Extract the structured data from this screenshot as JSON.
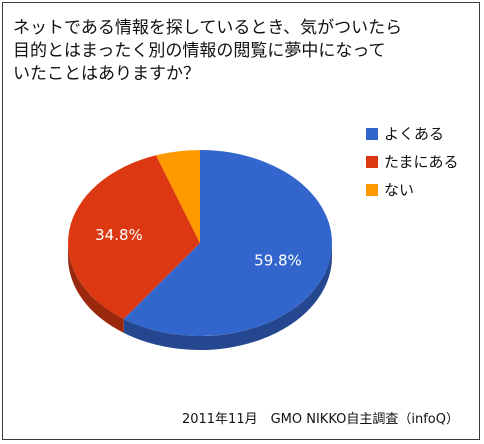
{
  "chart_data": {
    "type": "pie",
    "title_lines": [
      "ネットである情報を探しているとき、気がついたら",
      "目的とはまったく別の情報の閲覧に夢中になって",
      "いたことはありますか？"
    ],
    "slices": [
      {
        "name": "よくある",
        "value": 59.8,
        "label": "59.8%",
        "color": "#3366cc"
      },
      {
        "name": "たまにある",
        "value": 34.8,
        "label": "34.8%",
        "color": "#dc3912"
      },
      {
        "name": "ない",
        "value": 5.4,
        "label": "",
        "color": "#ff9900"
      }
    ],
    "legend_position": "right",
    "style": "3d"
  },
  "source": "2011年11月　GMO NIKKO自主調査（infoQ）"
}
